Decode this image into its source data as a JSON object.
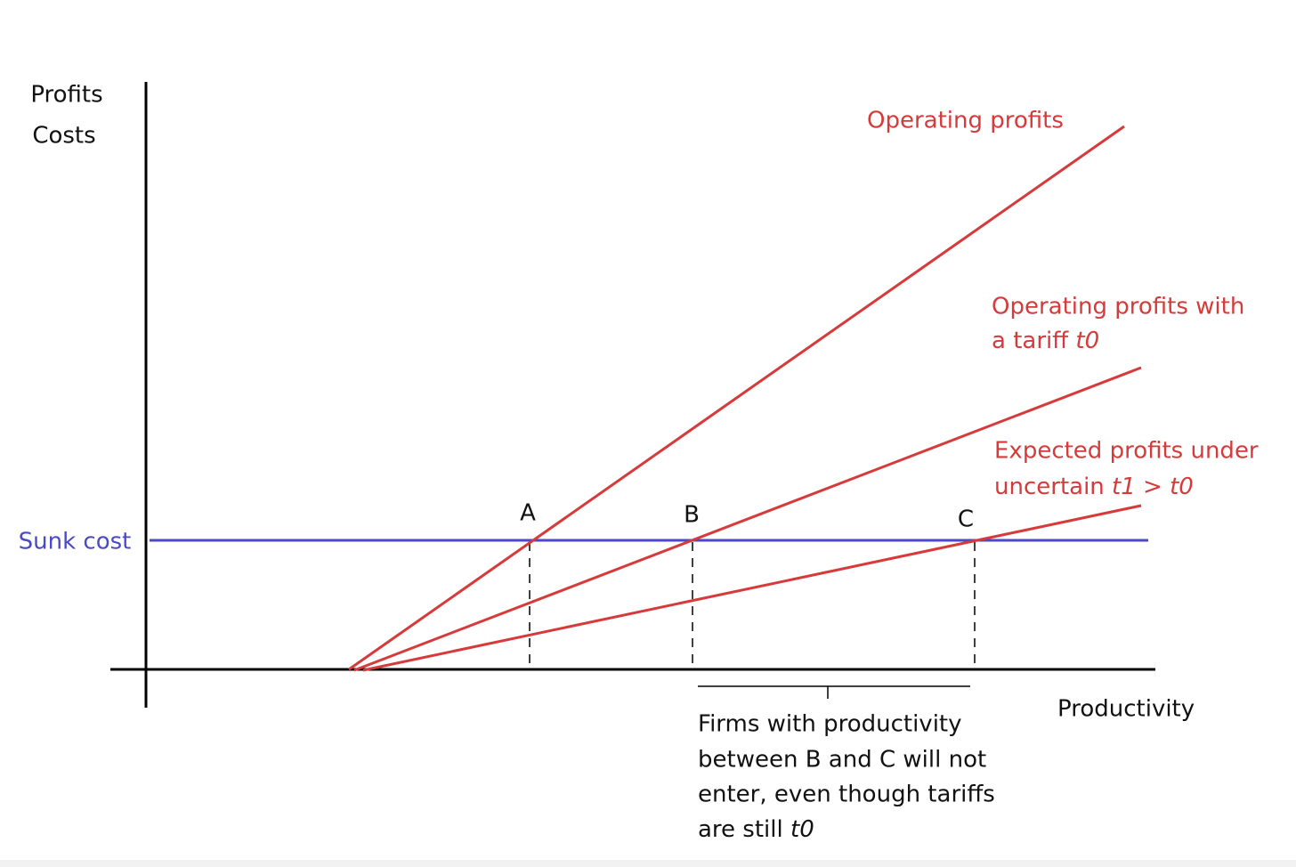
{
  "axes": {
    "y_label_1": "Profits",
    "y_label_2": "Costs",
    "x_label": "Productivity"
  },
  "sunk_cost": "Sunk cost",
  "curves": {
    "operating_profits": "Operating profits",
    "tariff": {
      "line1": "Operating profits with",
      "line2": "a tariff",
      "line2_italic": "t0"
    },
    "uncertain": {
      "line1": "Expected profits under",
      "line2": "uncertain",
      "line2_italic": "t1 > t0"
    }
  },
  "points": [
    "A",
    "B",
    "C"
  ],
  "note": {
    "lines": [
      "Firms with productivity",
      "between B and C will not",
      "enter, even though tariffs",
      "are still"
    ],
    "last_italic": "t0"
  }
}
